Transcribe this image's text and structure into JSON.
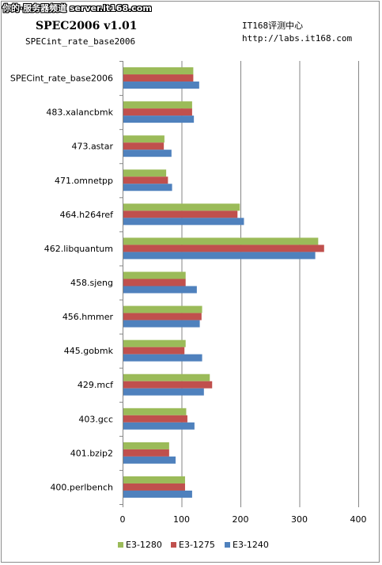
{
  "header": {
    "watermark": "你的·服务器频道 server.it168.com",
    "brand": "IT168评测中心",
    "url": "http://labs.it168.com"
  },
  "chart_data": {
    "type": "bar",
    "orientation": "horizontal",
    "title": "SPEC2006 v1.01",
    "subtitle": "SPECint_rate_base2006",
    "categories": [
      "SPECint_rate_base2006",
      "483.xalancbmk",
      "473.astar",
      "471.omnetpp",
      "464.h264ref",
      "462.libquantum",
      "458.sjeng",
      "456.hmmer",
      "445.gobmk",
      "429.mcf",
      "403.gcc",
      "401.bzip2",
      "400.perlbench"
    ],
    "series": [
      {
        "name": "E3-1280",
        "color": "#9bbb59",
        "values": [
          120,
          118,
          71,
          74,
          199,
          332,
          107,
          135,
          107,
          148,
          108,
          79,
          106
        ]
      },
      {
        "name": "E3-1275",
        "color": "#c0504d",
        "values": [
          120,
          118,
          70,
          77,
          195,
          342,
          107,
          134,
          105,
          152,
          110,
          79,
          106
        ]
      },
      {
        "name": "E3-1240",
        "color": "#4f81bd",
        "values": [
          130,
          121,
          83,
          84,
          206,
          327,
          126,
          131,
          135,
          138,
          122,
          90,
          118
        ]
      }
    ],
    "xlim": [
      0,
      400
    ],
    "xticks": [
      0,
      100,
      200,
      300,
      400
    ],
    "grid": true,
    "legend_position": "bottom"
  }
}
